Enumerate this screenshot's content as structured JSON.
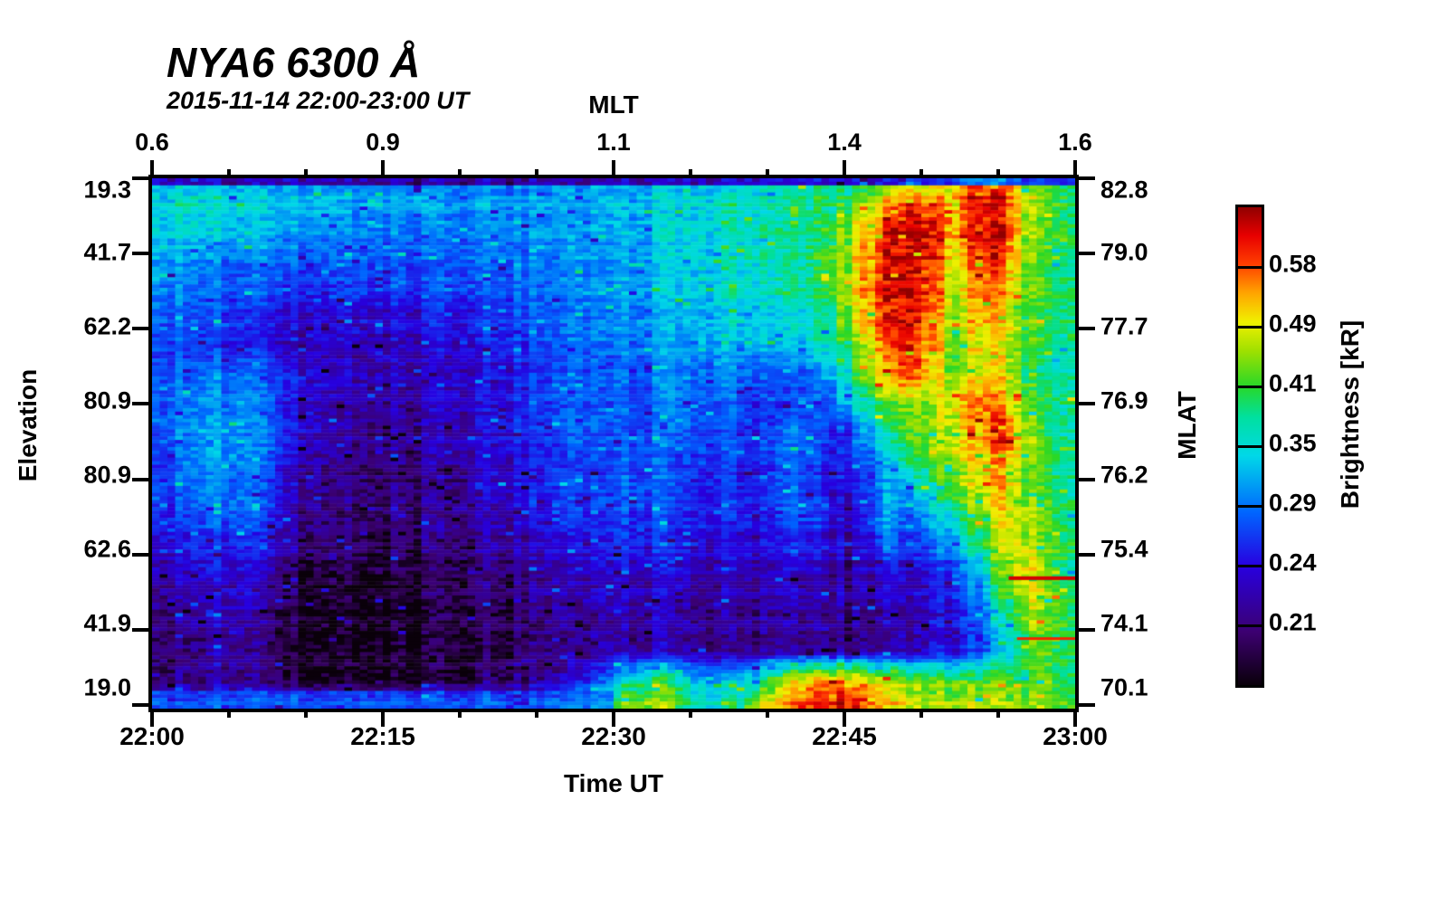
{
  "chart_data": {
    "type": "heatmap",
    "title": "NYA6 6300 Å",
    "subtitle": "2015-11-14 22:00-23:00 UT",
    "top_axis": {
      "label": "MLT",
      "ticks": [
        "0.6",
        "0.9",
        "1.1",
        "1.4",
        "1.6"
      ]
    },
    "bottom_axis": {
      "label": "Time UT",
      "ticks": [
        "22:00",
        "22:15",
        "22:30",
        "22:45",
        "23:00"
      ]
    },
    "left_axis": {
      "label": "Elevation",
      "ticks": [
        "19.3",
        "41.7",
        "62.2",
        "80.9",
        "80.9",
        "62.6",
        "41.9",
        "19.0"
      ]
    },
    "right_axis": {
      "label": "MLAT",
      "ticks": [
        "82.8",
        "79.0",
        "77.7",
        "76.9",
        "76.2",
        "75.4",
        "74.1",
        "70.1"
      ]
    },
    "colorbar": {
      "label": "Brightness [kR]",
      "ticks": [
        "0.58",
        "0.49",
        "0.41",
        "0.35",
        "0.29",
        "0.24",
        "0.21"
      ]
    },
    "value_units": "kR",
    "value_boundaries": [
      0.185,
      0.21,
      0.24,
      0.29,
      0.35,
      0.41,
      0.49,
      0.58,
      0.66
    ],
    "colormap_stops": [
      {
        "t": 0.0,
        "color": "#0a000a"
      },
      {
        "t": 0.11,
        "color": "#3c0070"
      },
      {
        "t": 0.25,
        "color": "#2800e0"
      },
      {
        "t": 0.36,
        "color": "#0064ff"
      },
      {
        "t": 0.48,
        "color": "#00d8e8"
      },
      {
        "t": 0.56,
        "color": "#00e0a0"
      },
      {
        "t": 0.625,
        "color": "#28d828"
      },
      {
        "t": 0.7,
        "color": "#a0e000"
      },
      {
        "t": 0.76,
        "color": "#f0f000"
      },
      {
        "t": 0.82,
        "color": "#ffa500"
      },
      {
        "t": 0.88,
        "color": "#ff4000"
      },
      {
        "t": 0.94,
        "color": "#e80000"
      },
      {
        "t": 1.0,
        "color": "#900000"
      }
    ],
    "grid": {
      "cols": 40,
      "rows": 20,
      "values": [
        [
          0.31,
          0.33,
          0.34,
          0.33,
          0.32,
          0.31,
          0.31,
          0.3,
          0.3,
          0.3,
          0.3,
          0.29,
          0.3,
          0.3,
          0.31,
          0.3,
          0.3,
          0.31,
          0.31,
          0.32,
          0.32,
          0.33,
          0.33,
          0.34,
          0.34,
          0.35,
          0.36,
          0.37,
          0.38,
          0.38,
          0.39,
          0.42,
          0.45,
          0.44,
          0.52,
          0.6,
          0.58,
          0.44,
          0.4,
          0.38
        ],
        [
          0.34,
          0.36,
          0.36,
          0.35,
          0.34,
          0.33,
          0.33,
          0.33,
          0.32,
          0.31,
          0.31,
          0.31,
          0.31,
          0.31,
          0.31,
          0.31,
          0.31,
          0.32,
          0.32,
          0.33,
          0.33,
          0.34,
          0.34,
          0.35,
          0.36,
          0.36,
          0.37,
          0.38,
          0.39,
          0.4,
          0.44,
          0.55,
          0.62,
          0.58,
          0.55,
          0.63,
          0.6,
          0.46,
          0.41,
          0.39
        ],
        [
          0.33,
          0.34,
          0.34,
          0.33,
          0.32,
          0.31,
          0.3,
          0.3,
          0.29,
          0.29,
          0.29,
          0.29,
          0.29,
          0.29,
          0.3,
          0.3,
          0.3,
          0.31,
          0.31,
          0.32,
          0.32,
          0.33,
          0.34,
          0.35,
          0.35,
          0.36,
          0.37,
          0.38,
          0.39,
          0.42,
          0.5,
          0.62,
          0.65,
          0.62,
          0.52,
          0.64,
          0.6,
          0.45,
          0.41,
          0.39
        ],
        [
          0.31,
          0.31,
          0.31,
          0.3,
          0.29,
          0.29,
          0.28,
          0.28,
          0.28,
          0.28,
          0.28,
          0.28,
          0.28,
          0.29,
          0.29,
          0.29,
          0.3,
          0.3,
          0.31,
          0.31,
          0.32,
          0.33,
          0.34,
          0.35,
          0.36,
          0.36,
          0.37,
          0.38,
          0.4,
          0.44,
          0.52,
          0.64,
          0.65,
          0.6,
          0.5,
          0.62,
          0.58,
          0.44,
          0.4,
          0.39
        ],
        [
          0.3,
          0.3,
          0.29,
          0.28,
          0.27,
          0.27,
          0.26,
          0.26,
          0.26,
          0.26,
          0.26,
          0.26,
          0.27,
          0.27,
          0.27,
          0.28,
          0.29,
          0.29,
          0.3,
          0.31,
          0.31,
          0.32,
          0.33,
          0.34,
          0.35,
          0.35,
          0.36,
          0.37,
          0.39,
          0.43,
          0.52,
          0.64,
          0.64,
          0.58,
          0.47,
          0.58,
          0.54,
          0.43,
          0.4,
          0.38
        ],
        [
          0.28,
          0.28,
          0.28,
          0.27,
          0.26,
          0.25,
          0.24,
          0.24,
          0.24,
          0.24,
          0.24,
          0.24,
          0.25,
          0.25,
          0.26,
          0.27,
          0.28,
          0.28,
          0.29,
          0.3,
          0.31,
          0.31,
          0.32,
          0.33,
          0.33,
          0.34,
          0.34,
          0.35,
          0.37,
          0.41,
          0.5,
          0.63,
          0.63,
          0.56,
          0.46,
          0.55,
          0.5,
          0.42,
          0.39,
          0.38
        ],
        [
          0.27,
          0.27,
          0.27,
          0.26,
          0.25,
          0.24,
          0.23,
          0.23,
          0.23,
          0.23,
          0.23,
          0.23,
          0.24,
          0.24,
          0.25,
          0.26,
          0.27,
          0.28,
          0.29,
          0.29,
          0.3,
          0.3,
          0.31,
          0.31,
          0.32,
          0.32,
          0.33,
          0.33,
          0.35,
          0.38,
          0.46,
          0.6,
          0.63,
          0.54,
          0.45,
          0.53,
          0.48,
          0.41,
          0.38,
          0.37
        ],
        [
          0.27,
          0.28,
          0.29,
          0.3,
          0.29,
          0.27,
          0.25,
          0.24,
          0.23,
          0.23,
          0.23,
          0.23,
          0.23,
          0.24,
          0.24,
          0.25,
          0.26,
          0.27,
          0.28,
          0.28,
          0.29,
          0.29,
          0.3,
          0.3,
          0.3,
          0.29,
          0.28,
          0.28,
          0.3,
          0.34,
          0.42,
          0.55,
          0.62,
          0.5,
          0.44,
          0.52,
          0.5,
          0.4,
          0.37,
          0.37
        ],
        [
          0.27,
          0.29,
          0.3,
          0.3,
          0.29,
          0.27,
          0.24,
          0.23,
          0.22,
          0.22,
          0.22,
          0.22,
          0.23,
          0.23,
          0.24,
          0.25,
          0.26,
          0.27,
          0.28,
          0.28,
          0.28,
          0.29,
          0.29,
          0.29,
          0.28,
          0.27,
          0.26,
          0.26,
          0.27,
          0.3,
          0.36,
          0.44,
          0.46,
          0.45,
          0.52,
          0.58,
          0.52,
          0.42,
          0.38,
          0.37
        ],
        [
          0.27,
          0.29,
          0.31,
          0.31,
          0.3,
          0.28,
          0.24,
          0.23,
          0.22,
          0.215,
          0.215,
          0.22,
          0.22,
          0.23,
          0.24,
          0.25,
          0.26,
          0.27,
          0.28,
          0.28,
          0.28,
          0.28,
          0.28,
          0.28,
          0.27,
          0.26,
          0.26,
          0.3,
          0.28,
          0.25,
          0.3,
          0.38,
          0.44,
          0.44,
          0.5,
          0.56,
          0.6,
          0.45,
          0.38,
          0.36
        ],
        [
          0.26,
          0.28,
          0.31,
          0.31,
          0.3,
          0.27,
          0.24,
          0.22,
          0.215,
          0.21,
          0.21,
          0.215,
          0.22,
          0.23,
          0.23,
          0.24,
          0.25,
          0.26,
          0.27,
          0.27,
          0.28,
          0.28,
          0.27,
          0.27,
          0.27,
          0.26,
          0.26,
          0.29,
          0.27,
          0.25,
          0.27,
          0.33,
          0.4,
          0.43,
          0.48,
          0.52,
          0.55,
          0.44,
          0.39,
          0.37
        ],
        [
          0.26,
          0.27,
          0.3,
          0.3,
          0.29,
          0.26,
          0.23,
          0.22,
          0.21,
          0.21,
          0.21,
          0.21,
          0.215,
          0.22,
          0.23,
          0.24,
          0.25,
          0.26,
          0.27,
          0.27,
          0.28,
          0.28,
          0.27,
          0.26,
          0.26,
          0.25,
          0.26,
          0.28,
          0.26,
          0.24,
          0.25,
          0.32,
          0.33,
          0.38,
          0.44,
          0.5,
          0.52,
          0.43,
          0.39,
          0.37
        ],
        [
          0.25,
          0.26,
          0.28,
          0.29,
          0.28,
          0.25,
          0.22,
          0.21,
          0.205,
          0.205,
          0.205,
          0.21,
          0.21,
          0.22,
          0.22,
          0.23,
          0.24,
          0.25,
          0.26,
          0.26,
          0.27,
          0.27,
          0.26,
          0.25,
          0.25,
          0.25,
          0.25,
          0.29,
          0.27,
          0.23,
          0.24,
          0.32,
          0.28,
          0.33,
          0.38,
          0.44,
          0.5,
          0.45,
          0.4,
          0.38
        ],
        [
          0.24,
          0.25,
          0.26,
          0.26,
          0.26,
          0.24,
          0.22,
          0.21,
          0.2,
          0.2,
          0.2,
          0.205,
          0.21,
          0.21,
          0.22,
          0.22,
          0.23,
          0.24,
          0.25,
          0.25,
          0.26,
          0.26,
          0.25,
          0.24,
          0.24,
          0.24,
          0.24,
          0.26,
          0.25,
          0.23,
          0.23,
          0.3,
          0.26,
          0.28,
          0.33,
          0.4,
          0.47,
          0.47,
          0.41,
          0.38
        ],
        [
          0.22,
          0.23,
          0.24,
          0.25,
          0.24,
          0.22,
          0.2,
          0.195,
          0.195,
          0.195,
          0.195,
          0.2,
          0.2,
          0.205,
          0.21,
          0.215,
          0.22,
          0.23,
          0.23,
          0.24,
          0.24,
          0.24,
          0.24,
          0.23,
          0.23,
          0.23,
          0.23,
          0.24,
          0.23,
          0.22,
          0.22,
          0.26,
          0.24,
          0.25,
          0.28,
          0.34,
          0.44,
          0.5,
          0.42,
          0.38
        ],
        [
          0.21,
          0.22,
          0.23,
          0.24,
          0.23,
          0.21,
          0.2,
          0.19,
          0.19,
          0.19,
          0.19,
          0.195,
          0.2,
          0.2,
          0.205,
          0.21,
          0.215,
          0.22,
          0.22,
          0.23,
          0.23,
          0.23,
          0.23,
          0.22,
          0.22,
          0.22,
          0.225,
          0.23,
          0.225,
          0.22,
          0.215,
          0.24,
          0.23,
          0.24,
          0.26,
          0.3,
          0.4,
          0.48,
          0.43,
          0.39
        ],
        [
          0.21,
          0.215,
          0.22,
          0.235,
          0.22,
          0.21,
          0.195,
          0.19,
          0.19,
          0.19,
          0.19,
          0.19,
          0.195,
          0.2,
          0.2,
          0.205,
          0.21,
          0.215,
          0.22,
          0.22,
          0.225,
          0.23,
          0.225,
          0.22,
          0.22,
          0.215,
          0.22,
          0.225,
          0.22,
          0.215,
          0.21,
          0.23,
          0.225,
          0.235,
          0.25,
          0.28,
          0.35,
          0.45,
          0.42,
          0.39
        ],
        [
          0.205,
          0.21,
          0.215,
          0.23,
          0.215,
          0.205,
          0.195,
          0.19,
          0.19,
          0.19,
          0.19,
          0.19,
          0.195,
          0.195,
          0.2,
          0.205,
          0.21,
          0.215,
          0.22,
          0.225,
          0.23,
          0.23,
          0.225,
          0.22,
          0.215,
          0.215,
          0.22,
          0.225,
          0.22,
          0.215,
          0.215,
          0.23,
          0.23,
          0.24,
          0.25,
          0.28,
          0.33,
          0.42,
          0.41,
          0.39
        ],
        [
          0.21,
          0.215,
          0.22,
          0.235,
          0.22,
          0.21,
          0.2,
          0.195,
          0.195,
          0.195,
          0.195,
          0.2,
          0.2,
          0.205,
          0.21,
          0.215,
          0.22,
          0.23,
          0.25,
          0.28,
          0.36,
          0.42,
          0.4,
          0.34,
          0.33,
          0.35,
          0.4,
          0.5,
          0.55,
          0.55,
          0.52,
          0.5,
          0.46,
          0.44,
          0.44,
          0.44,
          0.44,
          0.43,
          0.42,
          0.4
        ],
        [
          0.26,
          0.26,
          0.26,
          0.26,
          0.26,
          0.255,
          0.25,
          0.25,
          0.25,
          0.25,
          0.25,
          0.25,
          0.25,
          0.255,
          0.26,
          0.265,
          0.27,
          0.3,
          0.33,
          0.38,
          0.46,
          0.48,
          0.44,
          0.36,
          0.37,
          0.4,
          0.5,
          0.6,
          0.63,
          0.63,
          0.6,
          0.55,
          0.5,
          0.47,
          0.47,
          0.47,
          0.46,
          0.45,
          0.43,
          0.41
        ]
      ]
    },
    "features": [
      {
        "kind": "hband",
        "x1": 0.0,
        "x2": 1.0,
        "y1": 0.0,
        "y2": 0.015,
        "value": 0.2
      },
      {
        "kind": "hband",
        "x1": 0.0,
        "x2": 0.5,
        "y1": 0.969,
        "y2": 1.0,
        "value": 0.285
      },
      {
        "kind": "line",
        "x1": 0.928,
        "x2": 1.0,
        "y": 0.754,
        "thickness": 4,
        "value": 0.63
      },
      {
        "kind": "line",
        "x1": 0.937,
        "x2": 1.0,
        "y": 0.868,
        "thickness": 3,
        "value": 0.6
      }
    ]
  }
}
